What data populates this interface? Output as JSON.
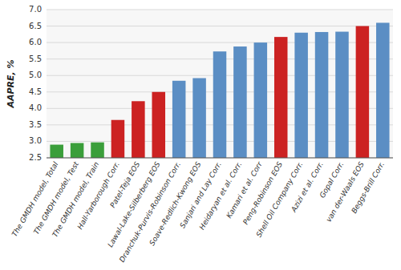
{
  "chart_data": {
    "type": "bar",
    "categories": [
      "The GMDH model, Total",
      "The GMDH model, Test",
      "The GMDH model, Train",
      "Hall-Yarborough Corr.",
      "Patel-Teja EOS",
      "Lawal-Lake-Silberberg EOS",
      "Dranchuk-Purvis-Robinson Corr.",
      "Soave-Redlich-Kwong EOS",
      "Sanjari and Lay Corr.",
      "Heidaryan et al. Corr.",
      "Kamari et al. Corr",
      "Peng-Robinson EOS",
      "Shell Oil Company Corr.",
      "Azizi et al. Corr.",
      "Gopal Corr.",
      "van der-Waals EOS",
      "Beggs-Brill Corr."
    ],
    "values": [
      2.9,
      2.95,
      2.97,
      3.65,
      4.22,
      4.5,
      4.84,
      4.92,
      5.73,
      5.88,
      6.0,
      6.17,
      6.3,
      6.32,
      6.33,
      6.5,
      6.6
    ],
    "colors": [
      "#3a9e3a",
      "#3a9e3a",
      "#3a9e3a",
      "#cc2222",
      "#cc2222",
      "#cc2222",
      "#5b8ec4",
      "#5b8ec4",
      "#5b8ec4",
      "#5b8ec4",
      "#5b8ec4",
      "#cc2222",
      "#5b8ec4",
      "#5b8ec4",
      "#5b8ec4",
      "#cc2222",
      "#5b8ec4"
    ],
    "ylabel": "AAPRE, %",
    "ylim": [
      2.5,
      7.0
    ],
    "yticks": [
      2.5,
      {
        "value": 3,
        "label": "3.0"
      },
      3.5,
      {
        "value": 4,
        "label": "4.0"
      },
      4.5,
      {
        "value": 5,
        "label": "5.0"
      },
      5.5,
      {
        "value": 6,
        "label": "6.0"
      },
      6.5,
      {
        "value": 7,
        "label": "7.0"
      }
    ],
    "grid": true
  }
}
